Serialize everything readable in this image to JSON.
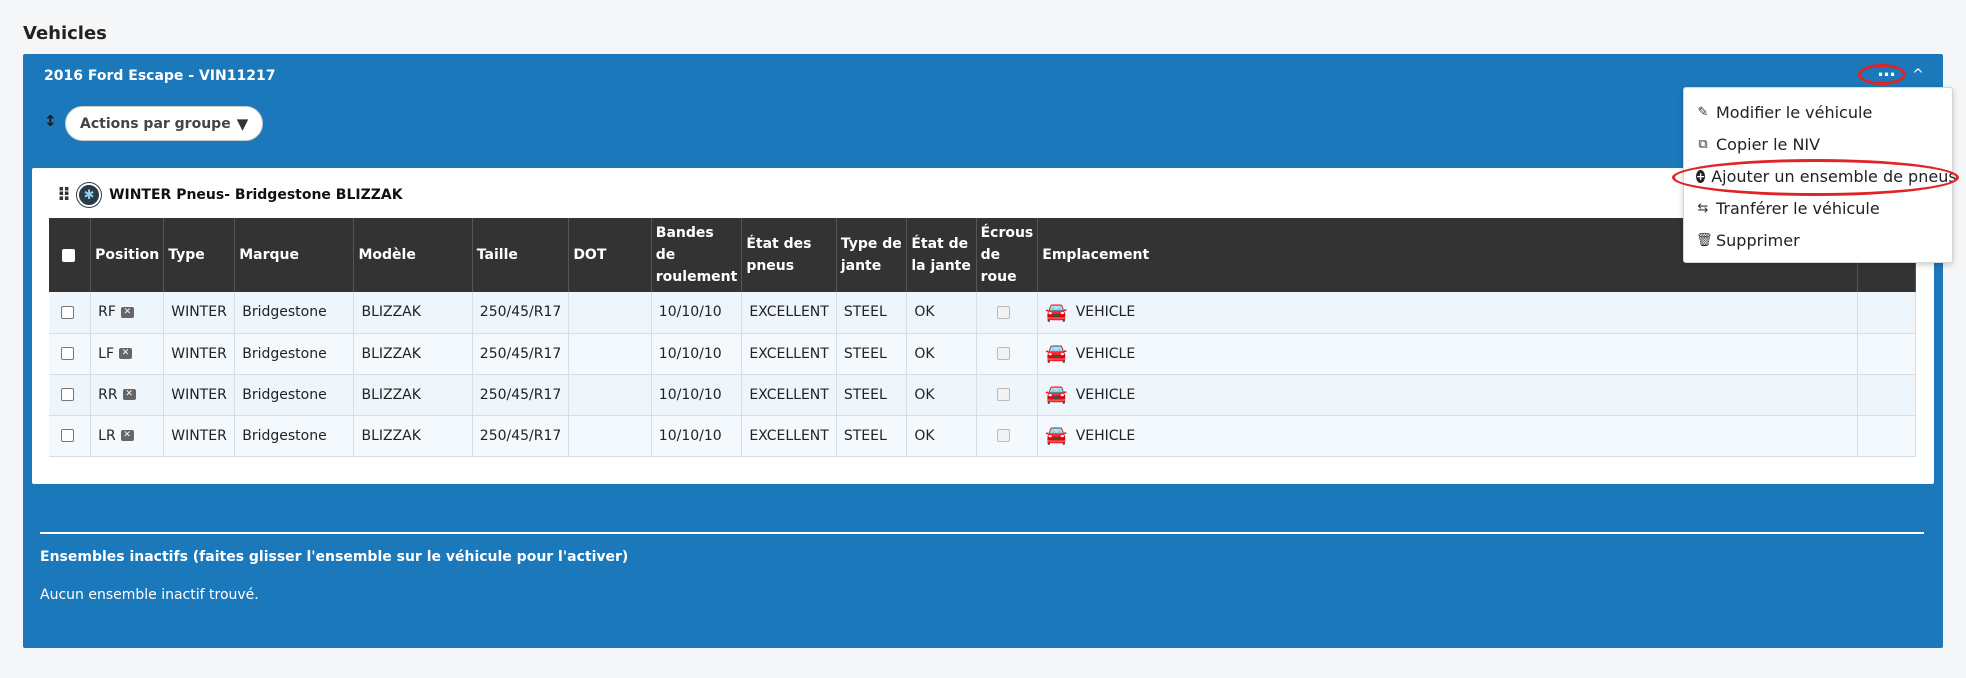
{
  "page": {
    "section_title": "Vehicles"
  },
  "vehicle": {
    "title": "2016 Ford Escape - VIN11217",
    "more_icon": "ellipsis-icon",
    "collapse_icon": "chevron-up-icon"
  },
  "toolbar": {
    "group_actions_label": "Actions par groupe"
  },
  "tire_set": {
    "title": "WINTER Pneus- Bridgestone BLIZZAK"
  },
  "table": {
    "headers": [
      "Position",
      "Type",
      "Marque",
      "Modèle",
      "Taille",
      "DOT",
      "Bandes de roulement",
      "État des pneus",
      "Type de jante",
      "État de la jante",
      "Écrous de roue",
      "Emplacement"
    ],
    "rows": [
      {
        "position": "RF",
        "type": "WINTER",
        "brand": "Bridgestone",
        "model": "BLIZZAK",
        "size": "250/45/R17",
        "dot": "",
        "tread": "10/10/10",
        "tire_condition": "EXCELLENT",
        "rim_type": "STEEL",
        "rim_condition": "OK",
        "location": "VEHICLE"
      },
      {
        "position": "LF",
        "type": "WINTER",
        "brand": "Bridgestone",
        "model": "BLIZZAK",
        "size": "250/45/R17",
        "dot": "",
        "tread": "10/10/10",
        "tire_condition": "EXCELLENT",
        "rim_type": "STEEL",
        "rim_condition": "OK",
        "location": "VEHICLE"
      },
      {
        "position": "RR",
        "type": "WINTER",
        "brand": "Bridgestone",
        "model": "BLIZZAK",
        "size": "250/45/R17",
        "dot": "",
        "tread": "10/10/10",
        "tire_condition": "EXCELLENT",
        "rim_type": "STEEL",
        "rim_condition": "OK",
        "location": "VEHICLE"
      },
      {
        "position": "LR",
        "type": "WINTER",
        "brand": "Bridgestone",
        "model": "BLIZZAK",
        "size": "250/45/R17",
        "dot": "",
        "tread": "10/10/10",
        "tire_condition": "EXCELLENT",
        "rim_type": "STEEL",
        "rim_condition": "OK",
        "location": "VEHICLE"
      }
    ]
  },
  "menu": {
    "items": [
      {
        "label": "Modifier le véhicule",
        "icon": "pencil-icon"
      },
      {
        "label": "Copier le NIV",
        "icon": "copy-icon"
      },
      {
        "label": "Ajouter un ensemble de pneus",
        "icon": "plus-circle-icon"
      },
      {
        "label": "Tranférer le véhicule",
        "icon": "transfer-icon"
      },
      {
        "label": "Supprimer",
        "icon": "trash-icon"
      }
    ]
  },
  "inactive": {
    "title": "Ensembles inactifs (faites glisser l'ensemble sur le véhicule pour l'activer)",
    "empty_text": "Aucun ensemble inactif trouvé."
  },
  "colors": {
    "panel": "#1b78bb",
    "table_header": "#333333",
    "annotation": "#e02424"
  }
}
